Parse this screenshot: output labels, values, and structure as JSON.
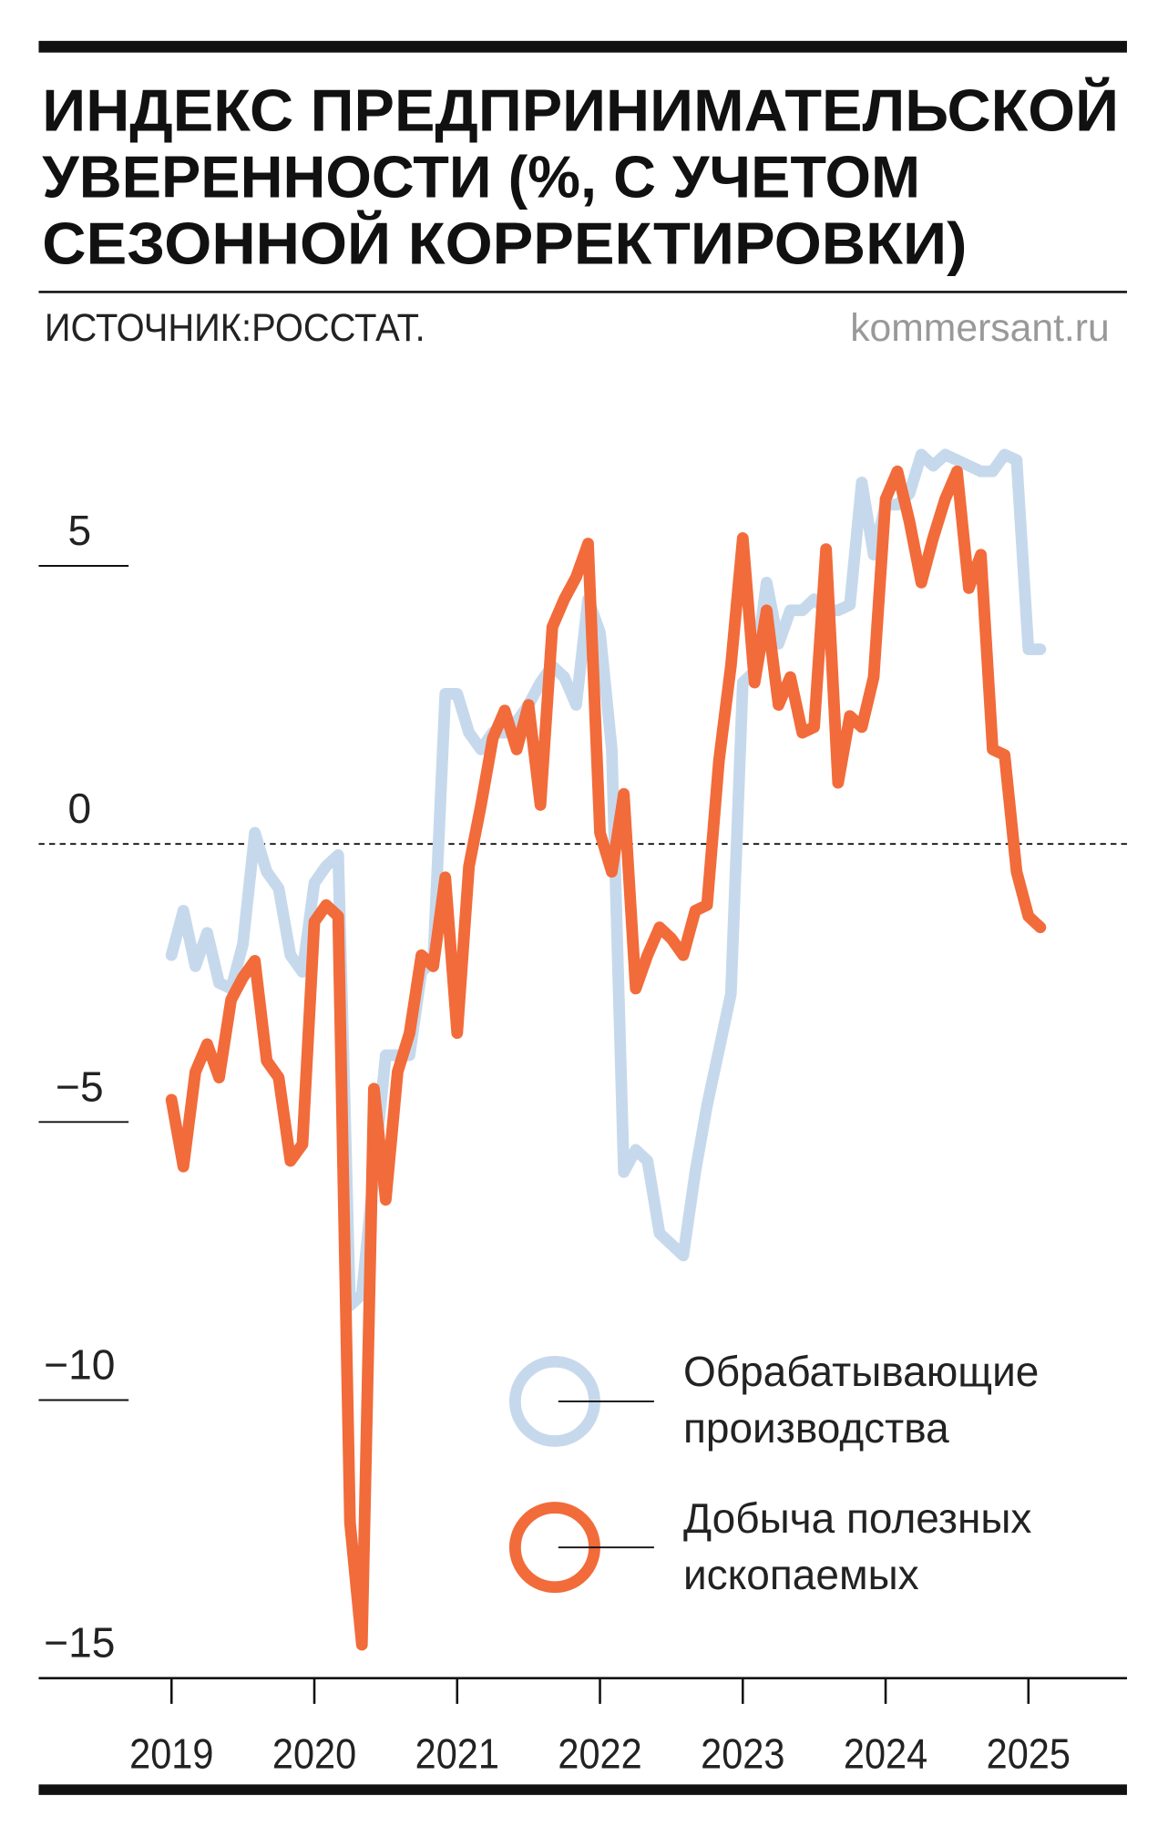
{
  "chart_data": {
    "type": "line",
    "title": [
      "ИНДЕКС ПРЕДПРИНИМАТЕЛЬСКОЙ",
      "УВЕРЕННОСТИ (%, С УЧЕТОМ",
      "СЕЗОННОЙ КОРРЕКТИРОВКИ)"
    ],
    "source": "ИСТОЧНИК:РОССТАТ.",
    "credit": "kommersant.ru",
    "x": [
      2019.0,
      2019.083,
      2019.167,
      2019.25,
      2019.333,
      2019.417,
      2019.5,
      2019.583,
      2019.667,
      2019.75,
      2019.833,
      2019.917,
      2020.0,
      2020.083,
      2020.167,
      2020.25,
      2020.333,
      2020.417,
      2020.5,
      2020.583,
      2020.667,
      2020.75,
      2020.833,
      2020.917,
      2021.0,
      2021.083,
      2021.167,
      2021.25,
      2021.333,
      2021.417,
      2021.5,
      2021.583,
      2021.667,
      2021.75,
      2021.833,
      2021.917,
      2022.0,
      2022.083,
      2022.167,
      2022.25,
      2022.333,
      2022.417,
      2022.5,
      2022.583,
      2022.667,
      2022.75,
      2022.833,
      2022.917,
      2023.0,
      2023.083,
      2023.167,
      2023.25,
      2023.333,
      2023.417,
      2023.5,
      2023.583,
      2023.667,
      2023.75,
      2023.833,
      2023.917,
      2024.0,
      2024.083,
      2024.167,
      2024.25,
      2024.333,
      2024.417,
      2024.5,
      2024.583,
      2024.667,
      2024.75,
      2024.833,
      2024.917,
      2025.0,
      2025.083
    ],
    "series": [
      {
        "name": "Обрабатывающие производства",
        "color": "#c6d9ec",
        "values": [
          -2.0,
          -1.2,
          -2.2,
          -1.6,
          -2.5,
          -2.6,
          -1.8,
          0.2,
          -0.5,
          -0.8,
          -2.0,
          -2.3,
          -0.7,
          -0.4,
          -0.2,
          -8.3,
          -8.1,
          -5.9,
          -3.8,
          -3.8,
          -3.8,
          -2.3,
          -2.1,
          2.7,
          2.7,
          2.0,
          1.7,
          2.0,
          2.0,
          2.2,
          2.5,
          2.9,
          3.2,
          3.0,
          2.5,
          4.4,
          3.8,
          1.7,
          -5.9,
          -5.5,
          -5.7,
          -7.0,
          -7.2,
          -7.4,
          -5.9,
          -4.7,
          -3.7,
          -2.7,
          2.9,
          3.1,
          4.7,
          3.6,
          4.2,
          4.2,
          4.4,
          4.2,
          4.2,
          4.3,
          6.5,
          5.2,
          6.1,
          6.1,
          6.3,
          7.0,
          6.8,
          7.0,
          6.9,
          6.8,
          6.7,
          6.7,
          7.0,
          6.9,
          3.5,
          3.5
        ]
      },
      {
        "name": "Добыча полезных ископаемых",
        "color": "#f26b3a",
        "values": [
          -4.6,
          -5.8,
          -4.1,
          -3.6,
          -4.2,
          -2.8,
          -2.4,
          -2.1,
          -3.9,
          -4.2,
          -5.7,
          -5.4,
          -1.4,
          -1.1,
          -1.3,
          -12.2,
          -14.4,
          -4.4,
          -6.4,
          -4.1,
          -3.4,
          -2.0,
          -2.2,
          -0.6,
          -3.4,
          -0.4,
          0.7,
          1.9,
          2.4,
          1.7,
          2.5,
          0.7,
          3.9,
          4.4,
          4.8,
          5.4,
          0.2,
          -0.5,
          0.9,
          -2.6,
          -2.0,
          -1.5,
          -1.7,
          -2.0,
          -1.2,
          -1.1,
          1.5,
          3.2,
          5.5,
          2.9,
          4.2,
          2.5,
          3.0,
          2.0,
          2.1,
          5.3,
          1.1,
          2.3,
          2.1,
          3.0,
          6.2,
          6.7,
          5.8,
          4.7,
          5.5,
          6.2,
          6.7,
          4.6,
          5.2,
          1.7,
          1.6,
          -0.5,
          -1.3,
          -1.5
        ]
      }
    ],
    "xlim": [
      2018.07,
      2025.69
    ],
    "xticks": [
      2019,
      2020,
      2021,
      2022,
      2023,
      2024,
      2025
    ],
    "ylim": [
      -15,
      7.3
    ],
    "yticks": [
      {
        "value": -15,
        "label": "−15"
      },
      {
        "value": -10,
        "label": "−10"
      },
      {
        "value": -5,
        "label": "−5"
      },
      0,
      5
    ],
    "legend": "lower right"
  }
}
